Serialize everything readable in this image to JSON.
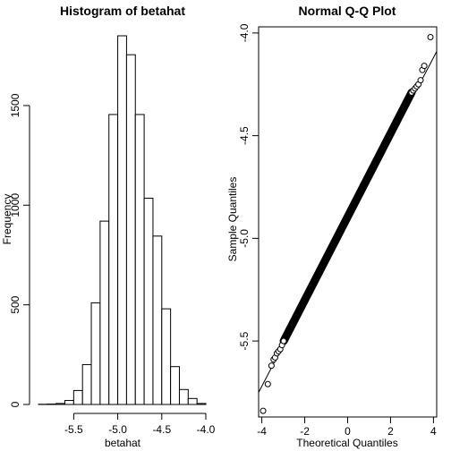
{
  "chart_data": [
    {
      "type": "bar",
      "title": "Histogram of betahat",
      "xlabel": "betahat",
      "ylabel": "Frequency",
      "xlim": [
        -5.9,
        -4.0
      ],
      "ylim": [
        0,
        1850
      ],
      "bin_width": 0.1,
      "bin_edges": [
        -5.9,
        -5.8,
        -5.7,
        -5.6,
        -5.5,
        -5.4,
        -5.3,
        -5.2,
        -5.1,
        -5.0,
        -4.9,
        -4.8,
        -4.7,
        -4.6,
        -4.5,
        -4.4,
        -4.3,
        -4.2,
        -4.1,
        -4.0
      ],
      "values": [
        1,
        2,
        5,
        20,
        70,
        200,
        510,
        920,
        1455,
        1850,
        1755,
        1455,
        1035,
        845,
        480,
        190,
        75,
        30,
        5
      ],
      "x_ticks": [
        {
          "value": -5.5,
          "label": "-5.5"
        },
        {
          "value": -5.0,
          "label": "-5.0"
        },
        {
          "value": -4.5,
          "label": "-4.5"
        },
        {
          "value": -4.0,
          "label": "-4.0"
        }
      ],
      "y_ticks": [
        {
          "value": 0,
          "label": "0"
        },
        {
          "value": 500,
          "label": "500"
        },
        {
          "value": 1000,
          "label": "1000"
        },
        {
          "value": 1500,
          "label": "1500"
        }
      ]
    },
    {
      "type": "scatter",
      "title": "Normal Q-Q Plot",
      "xlabel": "Theoretical Quantiles",
      "ylabel": "Sample Quantiles",
      "xlim": [
        -4.15,
        4.15
      ],
      "ylim": [
        -5.87,
        -3.97
      ],
      "reference_line": {
        "intercept": -4.92,
        "slope": 0.2
      },
      "outliers": [
        [
          -3.94,
          -5.84
        ],
        [
          -3.72,
          -5.71
        ],
        [
          -3.55,
          -5.62
        ],
        [
          -3.45,
          -5.59
        ],
        [
          -3.38,
          -5.58
        ],
        [
          -3.3,
          -5.56
        ],
        [
          -3.22,
          -5.55
        ],
        [
          -3.14,
          -5.54
        ],
        [
          -3.06,
          -5.52
        ],
        [
          -2.98,
          -5.5
        ],
        [
          2.98,
          -4.29
        ],
        [
          3.06,
          -4.28
        ],
        [
          3.14,
          -4.27
        ],
        [
          3.22,
          -4.26
        ],
        [
          3.3,
          -4.25
        ],
        [
          3.4,
          -4.23
        ],
        [
          3.48,
          -4.18
        ],
        [
          3.57,
          -4.16
        ],
        [
          3.86,
          -4.02
        ]
      ],
      "x_ticks": [
        {
          "value": -4,
          "label": "-4"
        },
        {
          "value": -2,
          "label": "-2"
        },
        {
          "value": 0,
          "label": "0"
        },
        {
          "value": 2,
          "label": "2"
        },
        {
          "value": 4,
          "label": "4"
        }
      ],
      "y_ticks": [
        {
          "value": -5.5,
          "label": "-5.5"
        },
        {
          "value": -5.0,
          "label": "-5.0"
        },
        {
          "value": -4.5,
          "label": "-4.5"
        },
        {
          "value": -4.0,
          "label": "-4.0"
        }
      ]
    }
  ]
}
